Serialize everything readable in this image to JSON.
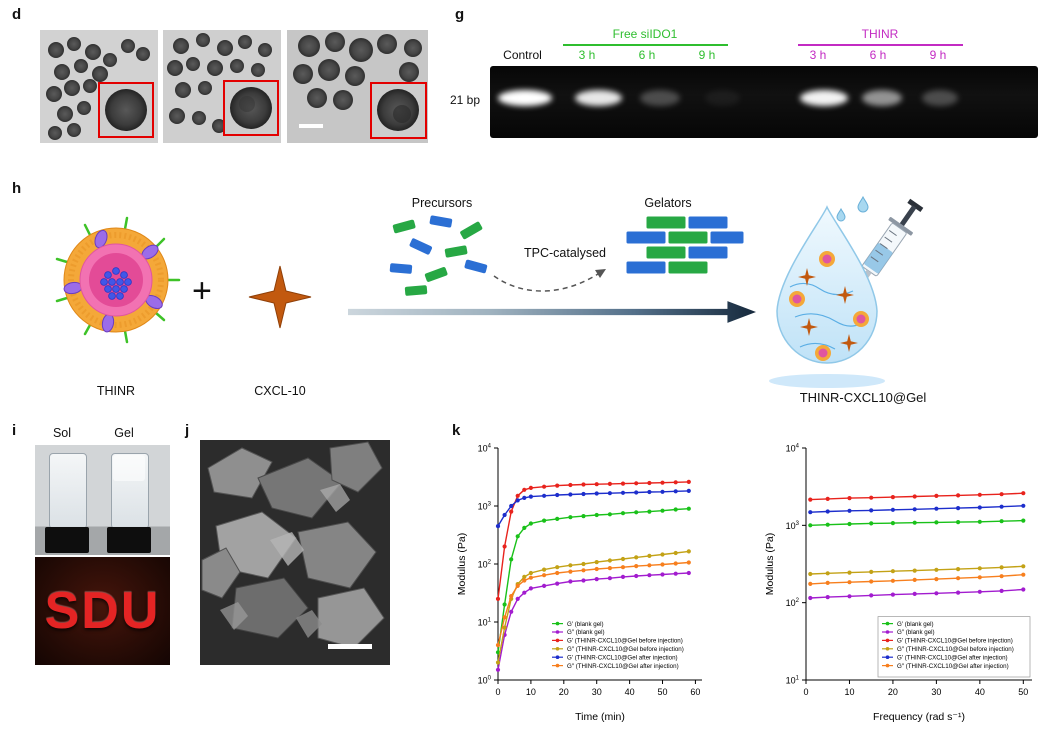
{
  "figure": {
    "panel_labels": {
      "d": "d",
      "g": "g",
      "h": "h",
      "i": "i",
      "j": "j",
      "k": "k"
    }
  },
  "gel_panel": {
    "band_size_label": "21 bp",
    "control_label": "Control",
    "groups": [
      {
        "name": "Free siIDO1",
        "color": "#2fbe2f",
        "timepoints": [
          "3 h",
          "6 h",
          "9 h"
        ]
      },
      {
        "name": "THINR",
        "color": "#c32bc3",
        "timepoints": [
          "3 h",
          "6 h",
          "9 h"
        ]
      }
    ]
  },
  "schematic": {
    "thinr_label": "THINR",
    "plus_sign": "+",
    "cxcl10_label": "CXCL-10",
    "precursors_label": "Precursors",
    "tpc_label": "TPC-catalysed",
    "gelators_label": "Gelators",
    "product_label": "THINR-CXCL10@Gel",
    "colors": {
      "precursor_green": "#27a844",
      "precursor_blue": "#2b6fd4",
      "star_orange": "#c2590f"
    }
  },
  "photo_panel": {
    "sol_label": "Sol",
    "gel_label": "Gel",
    "sdu_text": "SDU"
  },
  "chart_data": [
    {
      "type": "line",
      "yscale": "log",
      "xlabel": "Time (min)",
      "ylabel": "Modulus (Pa)",
      "xlim": [
        0,
        62
      ],
      "ylim": [
        1,
        10000
      ],
      "xticks": [
        0,
        10,
        20,
        30,
        40,
        50,
        60
      ],
      "legend_box": false,
      "legend_position": "bottom-right",
      "x": [
        0,
        2,
        4,
        6,
        8,
        10,
        14,
        18,
        22,
        26,
        30,
        34,
        38,
        42,
        46,
        50,
        54,
        58
      ],
      "series": [
        {
          "name": "G′ (blank gel)",
          "color": "#19c119",
          "values": [
            3,
            20,
            120,
            300,
            420,
            500,
            560,
            600,
            640,
            670,
            700,
            720,
            750,
            780,
            800,
            830,
            870,
            900
          ]
        },
        {
          "name": "G″ (blank gel)",
          "color": "#a21ccf",
          "values": [
            1.5,
            6,
            15,
            25,
            32,
            38,
            42,
            46,
            50,
            52,
            55,
            57,
            60,
            62,
            64,
            66,
            68,
            70
          ]
        },
        {
          "name": "G′ (THINR-CXCL10@Gel before injection)",
          "color": "#e8231d",
          "values": [
            25,
            200,
            800,
            1500,
            1900,
            2050,
            2150,
            2250,
            2300,
            2350,
            2380,
            2400,
            2430,
            2460,
            2490,
            2520,
            2560,
            2600
          ]
        },
        {
          "name": "G″ (THINR-CXCL10@Gel before injection)",
          "color": "#c3a216",
          "values": [
            2,
            8,
            25,
            45,
            60,
            70,
            80,
            88,
            95,
            100,
            108,
            115,
            122,
            130,
            138,
            146,
            155,
            165
          ]
        },
        {
          "name": "G′ (THINR-CXCL10@Gel after injection)",
          "color": "#1d2ecc",
          "values": [
            450,
            700,
            1000,
            1250,
            1380,
            1450,
            1500,
            1550,
            1580,
            1610,
            1640,
            1660,
            1690,
            1710,
            1740,
            1760,
            1790,
            1820
          ]
        },
        {
          "name": "G″ (THINR-CXCL10@Gel after injection)",
          "color": "#f77f1e",
          "values": [
            4,
            12,
            28,
            42,
            52,
            58,
            64,
            70,
            74,
            78,
            82,
            85,
            88,
            92,
            95,
            98,
            102,
            106
          ]
        }
      ]
    },
    {
      "type": "line",
      "yscale": "log",
      "xlabel": "Frequency (rad s⁻¹)",
      "ylabel": "Modulus (Pa)",
      "xlim": [
        0,
        52
      ],
      "ylim": [
        10,
        10000
      ],
      "xticks": [
        0,
        10,
        20,
        30,
        40,
        50
      ],
      "legend_box": true,
      "legend_position": "bottom-right",
      "x": [
        1,
        5,
        10,
        15,
        20,
        25,
        30,
        35,
        40,
        45,
        50
      ],
      "series": [
        {
          "name": "G′ (blank gel)",
          "color": "#19c119",
          "values": [
            1000,
            1020,
            1040,
            1060,
            1070,
            1080,
            1090,
            1100,
            1110,
            1130,
            1150
          ]
        },
        {
          "name": "G″ (blank gel)",
          "color": "#a21ccf",
          "values": [
            115,
            118,
            121,
            124,
            127,
            130,
            132,
            135,
            138,
            142,
            148
          ]
        },
        {
          "name": "G′ (THINR-CXCL10@Gel before injection)",
          "color": "#e8231d",
          "values": [
            2150,
            2200,
            2250,
            2280,
            2320,
            2360,
            2400,
            2440,
            2480,
            2530,
            2600
          ]
        },
        {
          "name": "G″ (THINR-CXCL10@Gel before injection)",
          "color": "#c3a216",
          "values": [
            235,
            240,
            245,
            250,
            255,
            260,
            266,
            272,
            278,
            286,
            295
          ]
        },
        {
          "name": "G′ (THINR-CXCL10@Gel after injection)",
          "color": "#1d2ecc",
          "values": [
            1480,
            1510,
            1540,
            1560,
            1590,
            1610,
            1640,
            1670,
            1700,
            1740,
            1790
          ]
        },
        {
          "name": "G″ (THINR-CXCL10@Gel after injection)",
          "color": "#f77f1e",
          "values": [
            175,
            180,
            184,
            188,
            192,
            197,
            202,
            207,
            213,
            220,
            230
          ]
        }
      ]
    }
  ]
}
